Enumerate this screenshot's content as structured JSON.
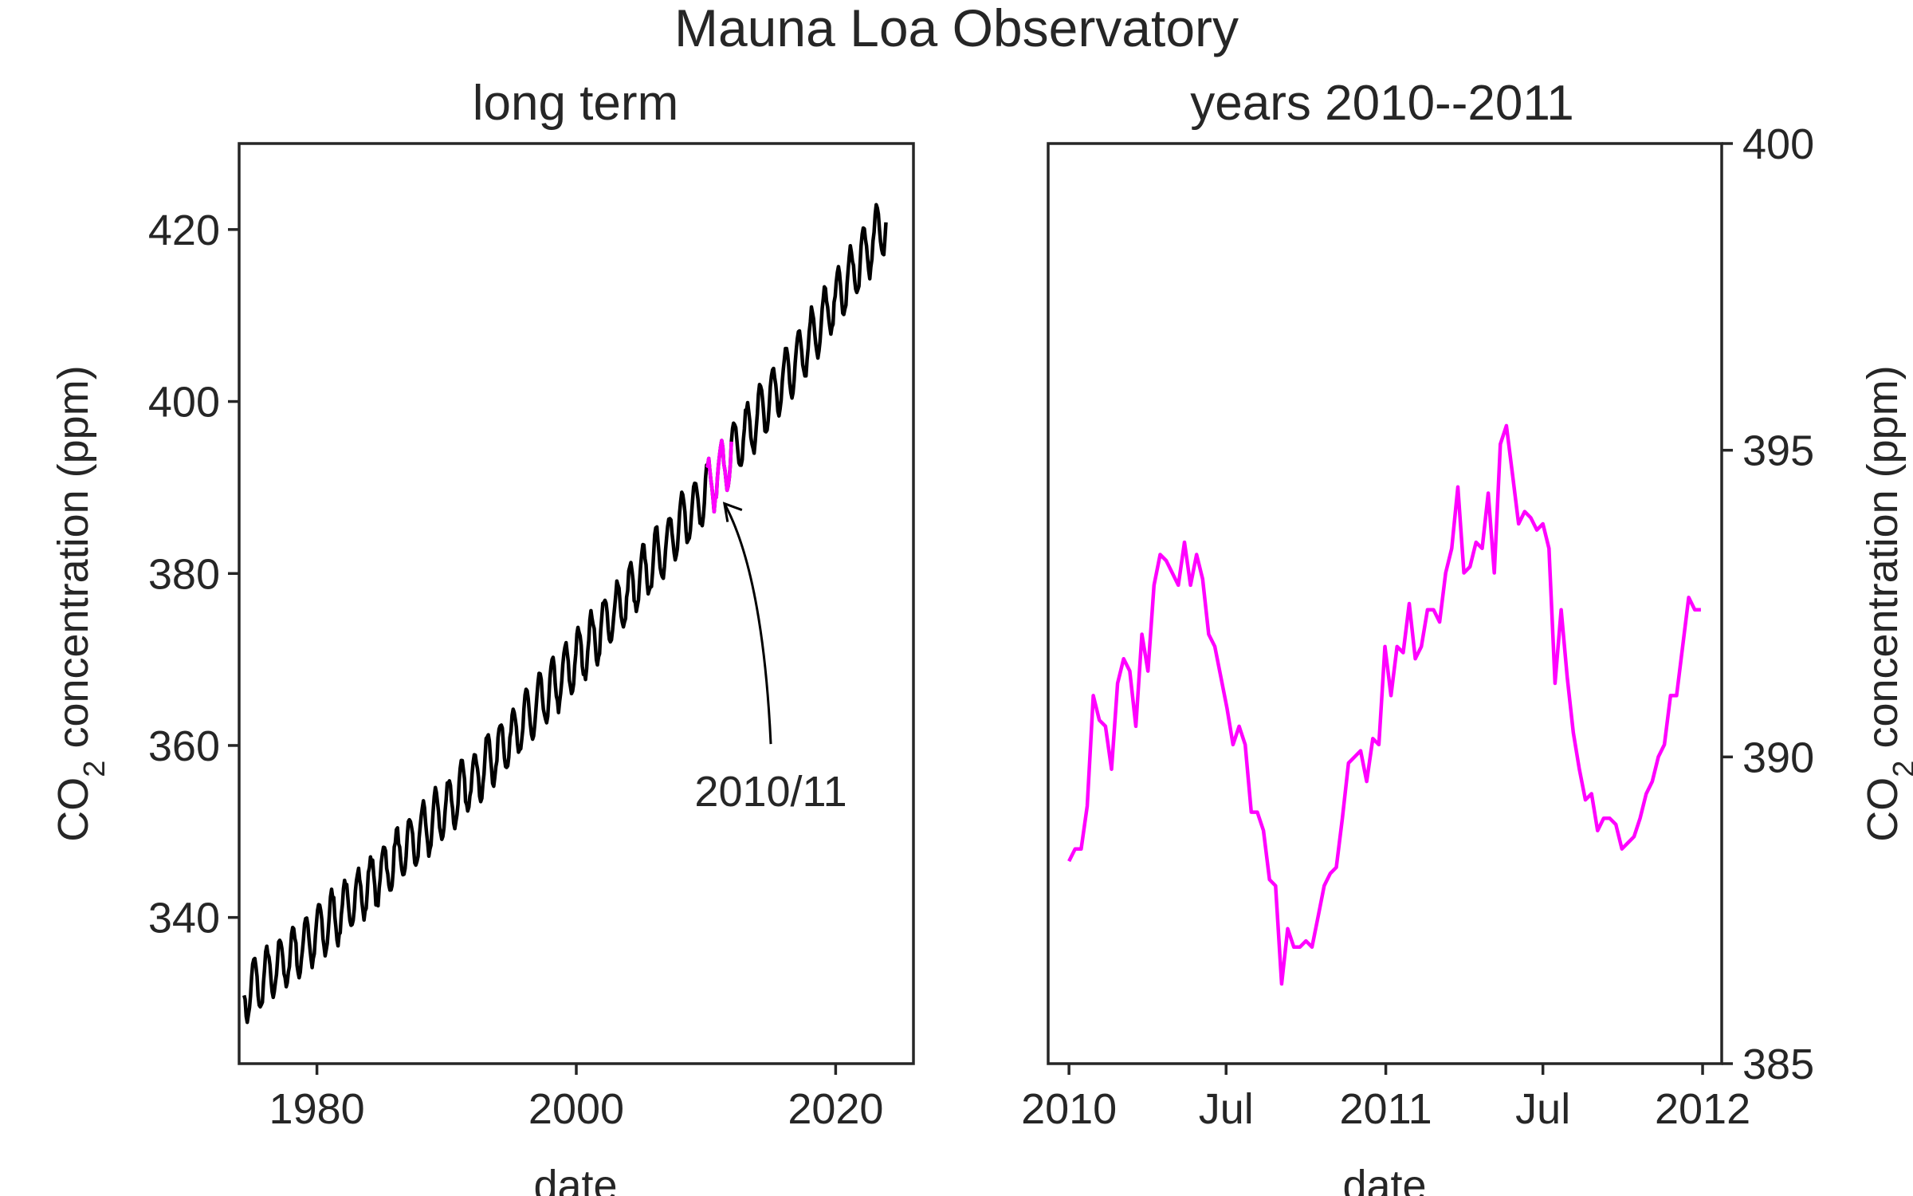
{
  "figure": {
    "title": "Mauna Loa Observatory"
  },
  "chart_data": [
    {
      "type": "line",
      "title": "long term",
      "xlabel": "date",
      "ylabel": "CO2 concentration (ppm)",
      "ylabel_parts": {
        "pre": "CO",
        "sub": "2",
        "post": " concentration (ppm)"
      },
      "xlim": [
        1974,
        2026
      ],
      "ylim": [
        323,
        430
      ],
      "xticks": [
        1980,
        2000,
        2020
      ],
      "xtick_labels": [
        "1980",
        "2000",
        "2020"
      ],
      "yticks": [
        340,
        360,
        380,
        400,
        420
      ],
      "ytick_labels": [
        "340",
        "360",
        "380",
        "400",
        "420"
      ],
      "grid": false,
      "series": [
        {
          "color": "#000000",
          "x_range": [
            1974.38,
            2023.92
          ],
          "trend": {
            "ref_year": 1974.38,
            "ref_value": 331.0,
            "quadratic_coeffs": [
              1.2,
              0.0125
            ]
          },
          "seasonal_amplitude_ppm": 3.2,
          "noise_ppm": 0.6,
          "highlight": {
            "x_range": [
              2010.0,
              2012.0
            ],
            "color": "#ff00ff"
          }
        }
      ],
      "annotation": {
        "text": "2010/11",
        "xy": [
          2011.3,
          388.5
        ],
        "text_xy": [
          2015.0,
          358.5
        ]
      }
    },
    {
      "type": "line",
      "title": "years 2010--2011",
      "xlabel": "date",
      "ylabel": "CO2 concentration (ppm)",
      "ylabel_parts": {
        "pre": "CO",
        "sub": "2",
        "post": " concentration (ppm)"
      },
      "ylabel_side": "right",
      "xlim": [
        "2009-12-08",
        "2012-01-23"
      ],
      "ylim": [
        385,
        400
      ],
      "xticks": [
        "2010-01-01",
        "2010-07-01",
        "2011-01-01",
        "2011-07-01",
        "2012-01-01"
      ],
      "xtick_labels": [
        "2010",
        "Jul",
        "2011",
        "Jul",
        "2012"
      ],
      "yticks": [
        385,
        390,
        395,
        400
      ],
      "ytick_labels": [
        "385",
        "390",
        "395",
        "400"
      ],
      "grid": false,
      "series": [
        {
          "color": "#ff00ff",
          "x": [
            "2010-01-01",
            "2010-01-08",
            "2010-01-15",
            "2010-01-22",
            "2010-01-29",
            "2010-02-05",
            "2010-02-12",
            "2010-02-19",
            "2010-02-26",
            "2010-03-05",
            "2010-03-12",
            "2010-03-19",
            "2010-03-26",
            "2010-04-02",
            "2010-04-09",
            "2010-04-16",
            "2010-04-23",
            "2010-04-30",
            "2010-05-07",
            "2010-05-14",
            "2010-05-21",
            "2010-05-28",
            "2010-06-04",
            "2010-06-11",
            "2010-06-18",
            "2010-06-25",
            "2010-07-02",
            "2010-07-09",
            "2010-07-16",
            "2010-07-23",
            "2010-07-30",
            "2010-08-06",
            "2010-08-13",
            "2010-08-20",
            "2010-08-27",
            "2010-09-03",
            "2010-09-10",
            "2010-09-17",
            "2010-09-24",
            "2010-10-01",
            "2010-10-08",
            "2010-10-15",
            "2010-10-22",
            "2010-10-29",
            "2010-11-05",
            "2010-11-12",
            "2010-11-19",
            "2010-11-26",
            "2010-12-03",
            "2010-12-10",
            "2010-12-17",
            "2010-12-24",
            "2010-12-31",
            "2011-01-07",
            "2011-01-14",
            "2011-01-21",
            "2011-01-28",
            "2011-02-04",
            "2011-02-11",
            "2011-02-18",
            "2011-02-25",
            "2011-03-04",
            "2011-03-11",
            "2011-03-18",
            "2011-03-25",
            "2011-04-01",
            "2011-04-08",
            "2011-04-15",
            "2011-04-22",
            "2011-04-29",
            "2011-05-06",
            "2011-05-13",
            "2011-05-20",
            "2011-05-27",
            "2011-06-03",
            "2011-06-10",
            "2011-06-17",
            "2011-06-24",
            "2011-07-01",
            "2011-07-08",
            "2011-07-15",
            "2011-07-22",
            "2011-07-29",
            "2011-08-05",
            "2011-08-12",
            "2011-08-19",
            "2011-08-26",
            "2011-09-02",
            "2011-09-09",
            "2011-09-16",
            "2011-09-23",
            "2011-09-30",
            "2011-10-07",
            "2011-10-14",
            "2011-10-21",
            "2011-10-28",
            "2011-11-04",
            "2011-11-11",
            "2011-11-18",
            "2011-11-25",
            "2011-12-02",
            "2011-12-09",
            "2011-12-16",
            "2011-12-23",
            "2011-12-30"
          ],
          "y": [
            388.3,
            388.5,
            388.5,
            389.2,
            391.0,
            390.6,
            390.5,
            389.8,
            391.2,
            391.6,
            391.4,
            390.5,
            392.0,
            391.4,
            392.8,
            393.3,
            393.2,
            393.0,
            392.8,
            393.5,
            392.8,
            393.3,
            392.9,
            392.0,
            391.8,
            391.3,
            390.8,
            390.2,
            390.5,
            390.2,
            389.1,
            389.1,
            388.8,
            388.0,
            387.9,
            386.3,
            387.2,
            386.9,
            386.9,
            387.0,
            386.9,
            387.4,
            387.9,
            388.1,
            388.2,
            389.0,
            389.9,
            390.0,
            390.1,
            389.6,
            390.3,
            390.2,
            391.8,
            391.0,
            391.8,
            391.7,
            392.5,
            391.6,
            391.8,
            392.4,
            392.4,
            392.2,
            393.0,
            393.4,
            394.4,
            393.0,
            393.1,
            393.5,
            393.4,
            394.3,
            393.0,
            395.1,
            395.4,
            394.6,
            393.8,
            394.0,
            393.9,
            393.7,
            393.8,
            393.4,
            391.2,
            392.4,
            391.3,
            390.4,
            389.8,
            389.3,
            389.4,
            388.8,
            389.0,
            389.0,
            388.9,
            388.5,
            388.6,
            388.7,
            389.0,
            389.4,
            389.6,
            390.0,
            390.2,
            391.0,
            391.0,
            391.8,
            392.6,
            392.4,
            392.4
          ]
        }
      ]
    }
  ]
}
